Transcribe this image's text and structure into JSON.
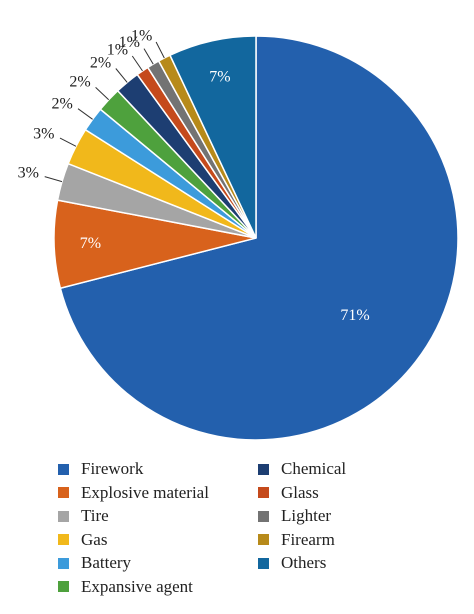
{
  "chart_data": {
    "type": "pie",
    "start": "top",
    "direction": "clockwise",
    "slices": [
      {
        "name": "Firework",
        "value": 71,
        "label": "71%",
        "color": "#2360ad"
      },
      {
        "name": "Explosive material",
        "value": 7,
        "label": "7%",
        "color": "#d8621c"
      },
      {
        "name": "Tire",
        "value": 3,
        "label": "3%",
        "color": "#a5a5a5"
      },
      {
        "name": "Gas",
        "value": 3,
        "label": "3%",
        "color": "#f1b81b"
      },
      {
        "name": "Battery",
        "value": 2,
        "label": "2%",
        "color": "#3c9bdb"
      },
      {
        "name": "Expansive agent",
        "value": 2,
        "label": "2%",
        "color": "#4ea13d"
      },
      {
        "name": "Chemical",
        "value": 2,
        "label": "2%",
        "color": "#1d3e72"
      },
      {
        "name": "Glass",
        "value": 1,
        "label": "1%",
        "color": "#c54a1c"
      },
      {
        "name": "Lighter",
        "value": 1,
        "label": "1%",
        "color": "#737373"
      },
      {
        "name": "Firearm",
        "value": 1,
        "label": "1%",
        "color": "#b78a1a"
      },
      {
        "name": "Others",
        "value": 7,
        "label": "7%",
        "color": "#12679e"
      }
    ],
    "legend": {
      "position": "bottom",
      "columns": [
        [
          "Firework",
          "Explosive material",
          "Tire",
          "Gas",
          "Battery",
          "Expansive agent"
        ],
        [
          "Chemical",
          "Glass",
          "Lighter",
          "Firearm",
          "Others"
        ]
      ]
    }
  }
}
